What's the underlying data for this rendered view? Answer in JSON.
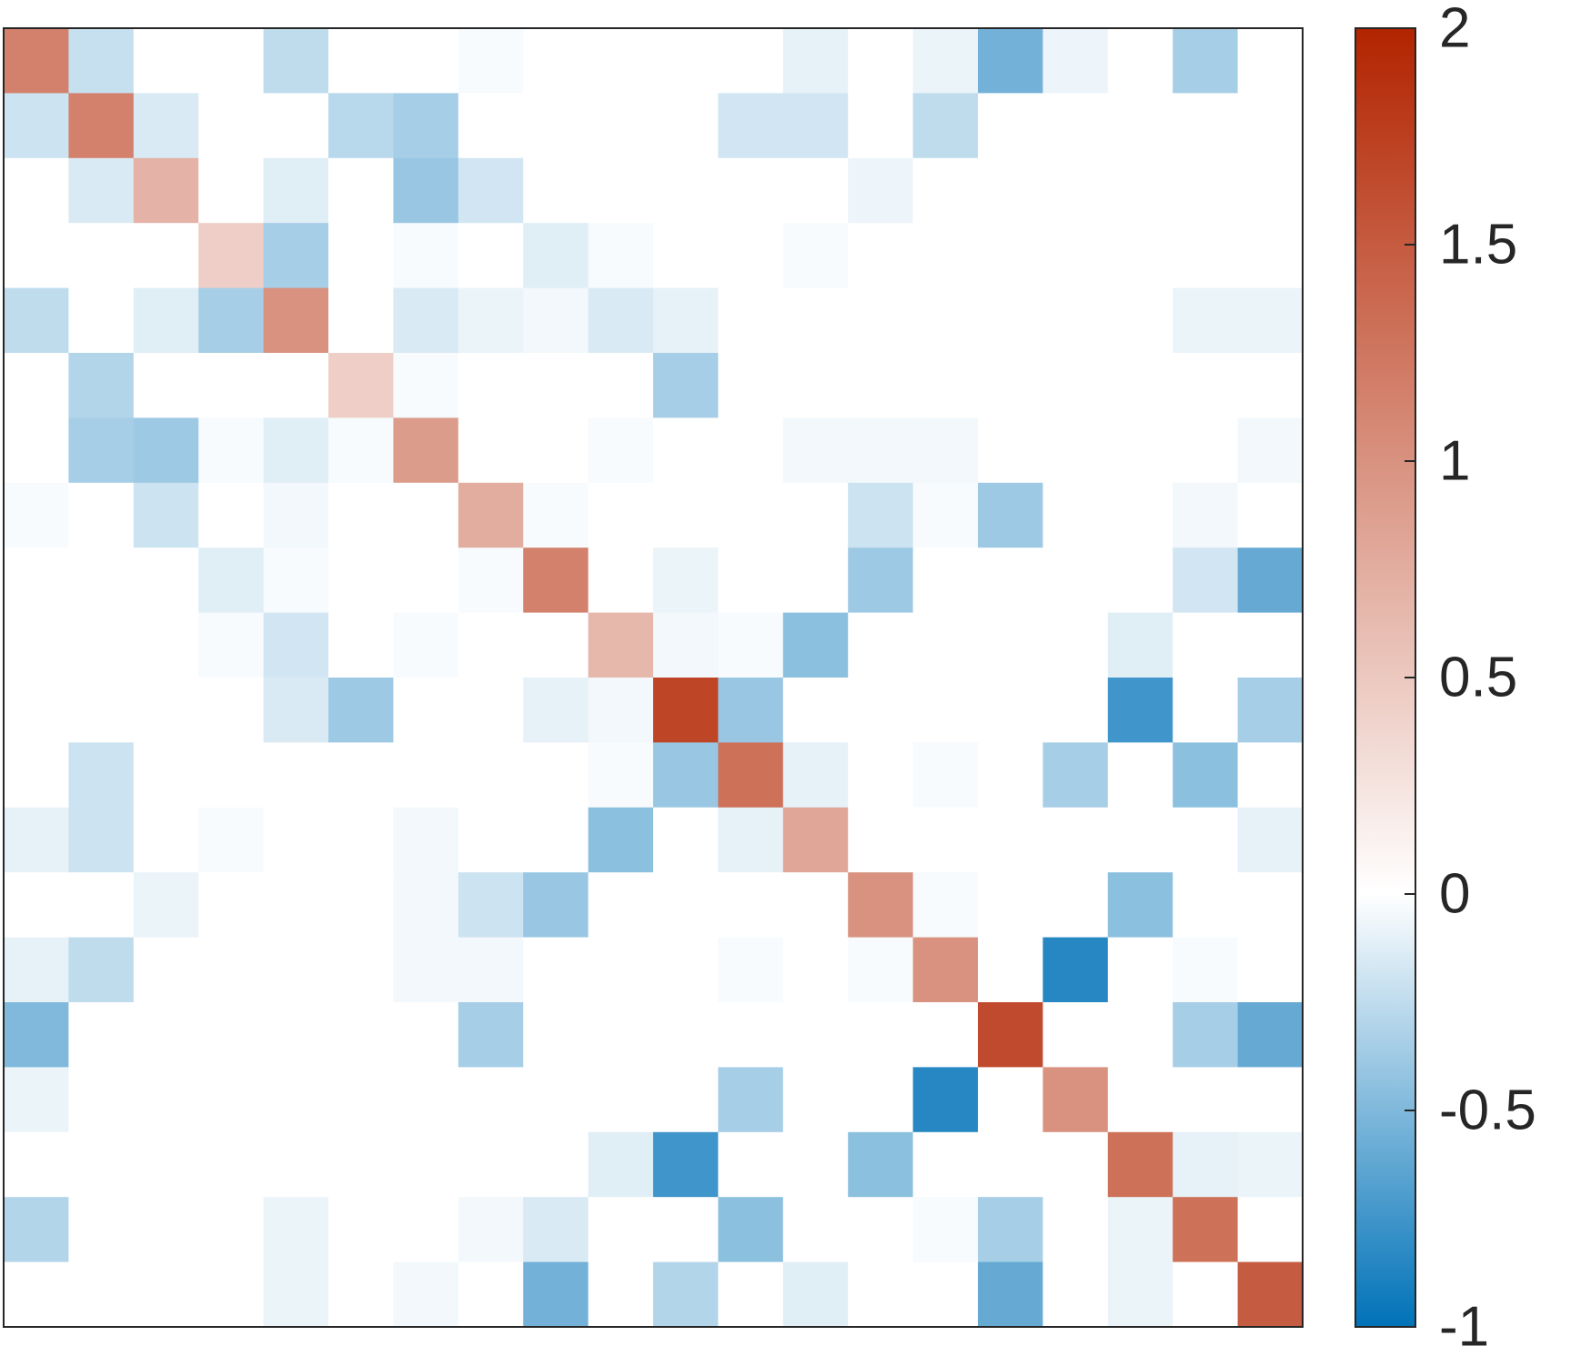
{
  "chart_data": {
    "type": "heatmap",
    "rows": 20,
    "cols": 20,
    "values": [
      [
        1.15,
        -0.22,
        0,
        0,
        -0.25,
        0,
        0,
        -0.03,
        0,
        0,
        0,
        0,
        -0.1,
        0,
        -0.08,
        -0.55,
        -0.07,
        0,
        -0.35,
        0
      ],
      [
        -0.2,
        1.15,
        -0.15,
        0,
        0,
        -0.28,
        -0.35,
        0,
        0,
        0,
        0,
        -0.18,
        -0.18,
        0,
        -0.25,
        0,
        0,
        0,
        0,
        0
      ],
      [
        0,
        -0.15,
        0.7,
        0,
        -0.12,
        0,
        -0.4,
        -0.18,
        0,
        0,
        0,
        0,
        0,
        -0.07,
        0,
        0,
        0,
        0,
        0,
        0
      ],
      [
        0,
        0,
        0,
        0.45,
        -0.35,
        0,
        -0.03,
        0,
        -0.12,
        -0.03,
        0,
        0,
        -0.03,
        0,
        0,
        0,
        0,
        0,
        0,
        0
      ],
      [
        -0.25,
        0,
        -0.12,
        -0.35,
        1.0,
        0,
        -0.15,
        -0.08,
        -0.05,
        -0.15,
        -0.1,
        0,
        0,
        0,
        0,
        0,
        0,
        0,
        -0.08,
        -0.08
      ],
      [
        0,
        -0.3,
        0,
        0,
        0,
        0.45,
        -0.03,
        0,
        0,
        0,
        -0.35,
        0,
        0,
        0,
        0,
        0,
        0,
        0,
        0,
        0
      ],
      [
        0,
        -0.35,
        -0.38,
        -0.03,
        -0.12,
        -0.03,
        0.9,
        0,
        0,
        -0.03,
        0,
        0,
        -0.05,
        -0.05,
        -0.05,
        0,
        0,
        0,
        0,
        -0.05
      ],
      [
        -0.03,
        0,
        -0.2,
        0,
        -0.05,
        0,
        0,
        0.75,
        -0.03,
        0,
        0,
        0,
        0,
        -0.2,
        -0.03,
        -0.38,
        0,
        0,
        -0.05,
        0
      ],
      [
        0,
        0,
        0,
        -0.12,
        -0.03,
        0,
        0,
        -0.03,
        1.15,
        0,
        -0.08,
        0,
        0,
        -0.38,
        0,
        0,
        0,
        0,
        -0.18,
        -0.6
      ],
      [
        0,
        0,
        0,
        -0.03,
        -0.18,
        0,
        -0.03,
        0,
        0,
        0.65,
        -0.05,
        -0.03,
        -0.45,
        0,
        0,
        0,
        0,
        -0.12,
        0,
        0
      ],
      [
        0,
        0,
        0,
        0,
        -0.15,
        -0.38,
        0,
        0,
        -0.1,
        -0.05,
        1.7,
        -0.4,
        0,
        0,
        0,
        0,
        0,
        -0.75,
        0,
        -0.35
      ],
      [
        0,
        -0.2,
        0,
        0,
        0,
        0,
        0,
        0,
        0,
        -0.03,
        -0.4,
        1.3,
        -0.1,
        0,
        -0.03,
        0,
        -0.35,
        0,
        -0.45,
        0
      ],
      [
        -0.1,
        -0.2,
        0,
        -0.03,
        0,
        0,
        -0.05,
        0,
        0,
        -0.45,
        0,
        -0.1,
        0.8,
        0,
        0,
        0,
        0,
        0,
        0,
        -0.1
      ],
      [
        0,
        0,
        -0.08,
        0,
        0,
        0,
        -0.05,
        -0.2,
        -0.4,
        0,
        0,
        0,
        0,
        1.0,
        -0.03,
        0,
        0,
        -0.45,
        0,
        0
      ],
      [
        -0.1,
        -0.25,
        0,
        0,
        0,
        0,
        -0.05,
        -0.05,
        0,
        0,
        0,
        -0.03,
        0,
        -0.03,
        1.0,
        0,
        -0.85,
        0,
        -0.03,
        0
      ],
      [
        -0.5,
        0,
        0,
        0,
        0,
        0,
        0,
        -0.35,
        0,
        0,
        0,
        0,
        0,
        0,
        0,
        1.65,
        0,
        0,
        -0.35,
        -0.6
      ],
      [
        -0.08,
        0,
        0,
        0,
        0,
        0,
        0,
        0,
        0,
        0,
        0,
        -0.35,
        0,
        0,
        -0.85,
        0,
        1.0,
        0,
        0,
        0
      ],
      [
        0,
        0,
        0,
        0,
        0,
        0,
        0,
        0,
        0,
        -0.12,
        -0.75,
        0,
        0,
        -0.45,
        0,
        0,
        0,
        1.3,
        -0.1,
        -0.08
      ],
      [
        -0.3,
        0,
        0,
        0,
        -0.08,
        0,
        0,
        -0.05,
        -0.15,
        0,
        0,
        -0.45,
        0,
        0,
        -0.03,
        -0.35,
        0,
        -0.08,
        1.3,
        0
      ],
      [
        0,
        0,
        0,
        0,
        -0.08,
        0,
        -0.05,
        0,
        -0.55,
        0,
        -0.3,
        0,
        -0.12,
        0,
        0,
        -0.6,
        0,
        -0.08,
        0,
        1.5
      ]
    ],
    "colorbar": {
      "min": -1,
      "max": 2,
      "ticks": [
        -1,
        -0.5,
        0,
        0.5,
        1,
        1.5,
        2
      ],
      "tick_labels": [
        "-1",
        "-0.5",
        "0",
        "0.5",
        "1",
        "1.5",
        "2"
      ],
      "colors": {
        "negative": "#0072b8",
        "zero": "#ffffff",
        "positive": "#b22400"
      }
    },
    "title": "",
    "xlabel": "",
    "ylabel": "",
    "grid": false
  }
}
